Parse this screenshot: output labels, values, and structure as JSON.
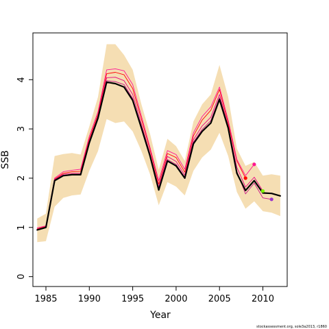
{
  "chart_data": {
    "type": "line",
    "title": "",
    "xlabel": "Year",
    "ylabel": "SSB",
    "xlim": [
      1983.5,
      2012.8
    ],
    "ylim": [
      -0.2,
      4.95
    ],
    "xticks": [
      1985,
      1990,
      1995,
      2000,
      2005,
      2010
    ],
    "yticks": [
      0,
      1,
      2,
      3,
      4
    ],
    "grid": false,
    "legend": "none",
    "footnote": "stockassessment.org, sole3a2013, r1860",
    "colors": {
      "band": "#f5deb3",
      "main": "#000000",
      "retro": [
        "#ff0000",
        "#ff1493",
        "#e6007e",
        "#c71585",
        "#ff3030"
      ],
      "points": [
        "#ff0000",
        "#ff1493",
        "#7fff00",
        "#9932cc"
      ]
    },
    "band": {
      "x": [
        1984,
        1985,
        1986,
        1987,
        1988,
        1989,
        1990,
        1991,
        1992,
        1993,
        1994,
        1995,
        1996,
        1997,
        1998,
        1999,
        2000,
        2001,
        2002,
        2003,
        2004,
        2005,
        2006,
        2007,
        2008,
        2009,
        2010,
        2011,
        2012
      ],
      "upper": [
        1.18,
        1.28,
        2.45,
        2.49,
        2.51,
        2.48,
        3.05,
        3.65,
        4.72,
        4.72,
        4.5,
        4.2,
        3.5,
        2.9,
        2.17,
        2.8,
        2.65,
        2.35,
        3.15,
        3.5,
        3.7,
        4.3,
        3.65,
        2.6,
        2.25,
        2.33,
        2.05,
        2.08,
        2.05
      ],
      "lower": [
        0.7,
        0.72,
        1.42,
        1.6,
        1.65,
        1.67,
        2.15,
        2.55,
        3.2,
        3.12,
        3.15,
        2.95,
        2.55,
        2.08,
        1.45,
        1.92,
        1.83,
        1.65,
        2.15,
        2.42,
        2.58,
        2.92,
        2.45,
        1.72,
        1.38,
        1.53,
        1.33,
        1.3,
        1.23
      ]
    },
    "series": [
      {
        "x": [
          1984,
          1985,
          1986,
          1987,
          1988,
          1989,
          1990,
          1991,
          1992,
          1993,
          1994,
          1995,
          1996,
          1997,
          1998,
          1999,
          2000,
          2001,
          2002,
          2003,
          2004,
          2005,
          2006,
          2007,
          2008,
          2009,
          2010,
          2011,
          2012
        ],
        "y": [
          0.95,
          1.0,
          1.95,
          2.05,
          2.07,
          2.07,
          2.72,
          3.22,
          3.95,
          3.92,
          3.85,
          3.58,
          3.02,
          2.45,
          1.76,
          2.35,
          2.25,
          2.0,
          2.7,
          2.95,
          3.12,
          3.6,
          3.02,
          2.1,
          1.75,
          1.95,
          1.7,
          1.69,
          1.64
        ],
        "width": 2.2
      },
      {
        "x": [
          1984,
          1985,
          1986,
          1987,
          1988,
          1989,
          1990,
          1991,
          1992,
          1993,
          1994,
          1995,
          1996,
          1997,
          1998,
          1999,
          2000,
          2001,
          2002,
          2003,
          2004,
          2005,
          2006,
          2007,
          2008
        ],
        "y": [
          0.97,
          1.02,
          1.98,
          2.1,
          2.13,
          2.14,
          2.8,
          3.3,
          4.12,
          4.15,
          4.1,
          3.82,
          3.2,
          2.58,
          1.88,
          2.5,
          2.42,
          2.12,
          2.86,
          3.18,
          3.38,
          3.8,
          3.12,
          2.35,
          2.0
        ],
        "width": 0.9
      },
      {
        "x": [
          1984,
          1985,
          1986,
          1987,
          1988,
          1989,
          1990,
          1991,
          1992,
          1993,
          1994,
          1995,
          1996,
          1997,
          1998,
          1999,
          2000,
          2001,
          2002,
          2003,
          2004,
          2005,
          2006,
          2007,
          2008,
          2009
        ],
        "y": [
          0.99,
          1.03,
          2.0,
          2.13,
          2.16,
          2.18,
          2.85,
          3.35,
          4.2,
          4.22,
          4.18,
          3.9,
          3.26,
          2.62,
          1.95,
          2.56,
          2.48,
          2.18,
          2.92,
          3.25,
          3.45,
          3.85,
          3.18,
          2.38,
          2.05,
          2.28
        ],
        "width": 0.9
      },
      {
        "x": [
          1984,
          1985,
          1986,
          1987,
          1988,
          1989,
          1990,
          1991,
          1992,
          1993,
          1994,
          1995,
          1996,
          1997,
          1998,
          1999,
          2000,
          2001,
          2002,
          2003,
          2004,
          2005,
          2006,
          2007,
          2008,
          2009,
          2010
        ],
        "y": [
          0.96,
          1.01,
          1.97,
          2.08,
          2.1,
          2.1,
          2.76,
          3.26,
          4.04,
          4.05,
          3.98,
          3.7,
          3.1,
          2.5,
          1.82,
          2.44,
          2.34,
          2.06,
          2.78,
          3.06,
          3.24,
          3.7,
          3.06,
          2.22,
          1.82,
          2.02,
          1.74
        ],
        "width": 0.9
      },
      {
        "x": [
          1984,
          1985,
          1986,
          1987,
          1988,
          1989,
          1990,
          1991,
          1992,
          1993,
          1994,
          1995,
          1996,
          1997,
          1998,
          1999,
          2000,
          2001,
          2002,
          2003,
          2004,
          2005,
          2006,
          2007,
          2008,
          2009,
          2010,
          2011
        ],
        "y": [
          0.95,
          1.0,
          1.96,
          2.06,
          2.08,
          2.08,
          2.74,
          3.24,
          3.98,
          3.96,
          3.9,
          3.62,
          3.05,
          2.47,
          1.78,
          2.38,
          2.28,
          2.02,
          2.73,
          2.99,
          3.17,
          3.64,
          3.04,
          2.14,
          1.68,
          1.9,
          1.6,
          1.57
        ],
        "width": 0.9
      }
    ],
    "points": [
      {
        "x": 2008,
        "y": 2.0
      },
      {
        "x": 2009,
        "y": 2.28
      },
      {
        "x": 2010,
        "y": 1.74
      },
      {
        "x": 2011,
        "y": 1.57
      }
    ]
  }
}
